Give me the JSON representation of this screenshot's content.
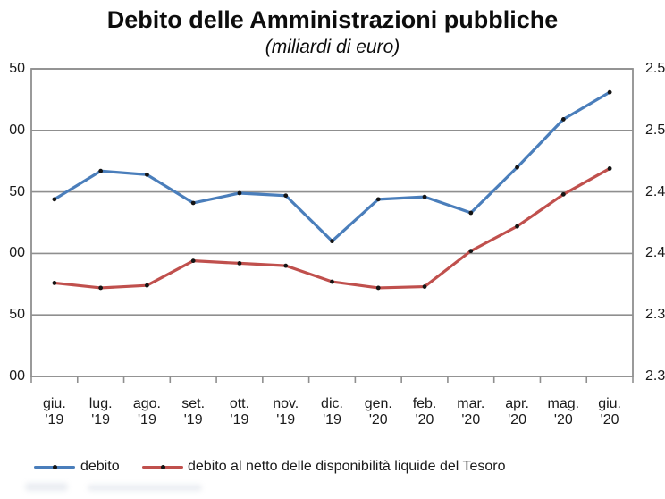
{
  "chart_data": {
    "type": "line",
    "title": "Debito delle Amministrazioni pubbliche",
    "subtitle": "(miliardi di euro)",
    "categories": [
      "giu. '19",
      "lug. '19",
      "ago. '19",
      "set. '19",
      "ott. '19",
      "nov. '19",
      "dic. '19",
      "gen. '20",
      "feb. '20",
      "mar. '20",
      "apr. '20",
      "mag. '20",
      "giu. '20"
    ],
    "series": [
      {
        "name": "debito",
        "color": "#4a7ebb",
        "values": [
          2444,
          2467,
          2464,
          2441,
          2449,
          2447,
          2410,
          2444,
          2446,
          2433,
          2470,
          2509,
          2531
        ]
      },
      {
        "name": "debito al netto delle disponibilità liquide del Tesoro",
        "color": "#c0504d",
        "values": [
          2376,
          2372,
          2374,
          2394,
          2392,
          2390,
          2377,
          2372,
          2373,
          2402,
          2422,
          2448,
          2469
        ]
      }
    ],
    "ylim": [
      2300,
      2550
    ],
    "y_step": 50,
    "grid": true,
    "legend_position": "bottom",
    "marker_color": "#141414"
  },
  "axis": {
    "gridline_values": [
      2550,
      2500,
      2450,
      2400,
      2350,
      2300
    ],
    "left_tick_labels_visible": [
      "50",
      "00",
      "50",
      "00",
      "50",
      "00"
    ],
    "right_tick_labels_visible": [
      "2.5",
      "2.5",
      "2.4",
      "2.4",
      "2.3",
      "2.3"
    ]
  },
  "colors": {
    "gridline": "#8f8f8f",
    "plot_border": "#8f8f8f",
    "background": "#ffffff",
    "text": "#1a1a1a"
  }
}
